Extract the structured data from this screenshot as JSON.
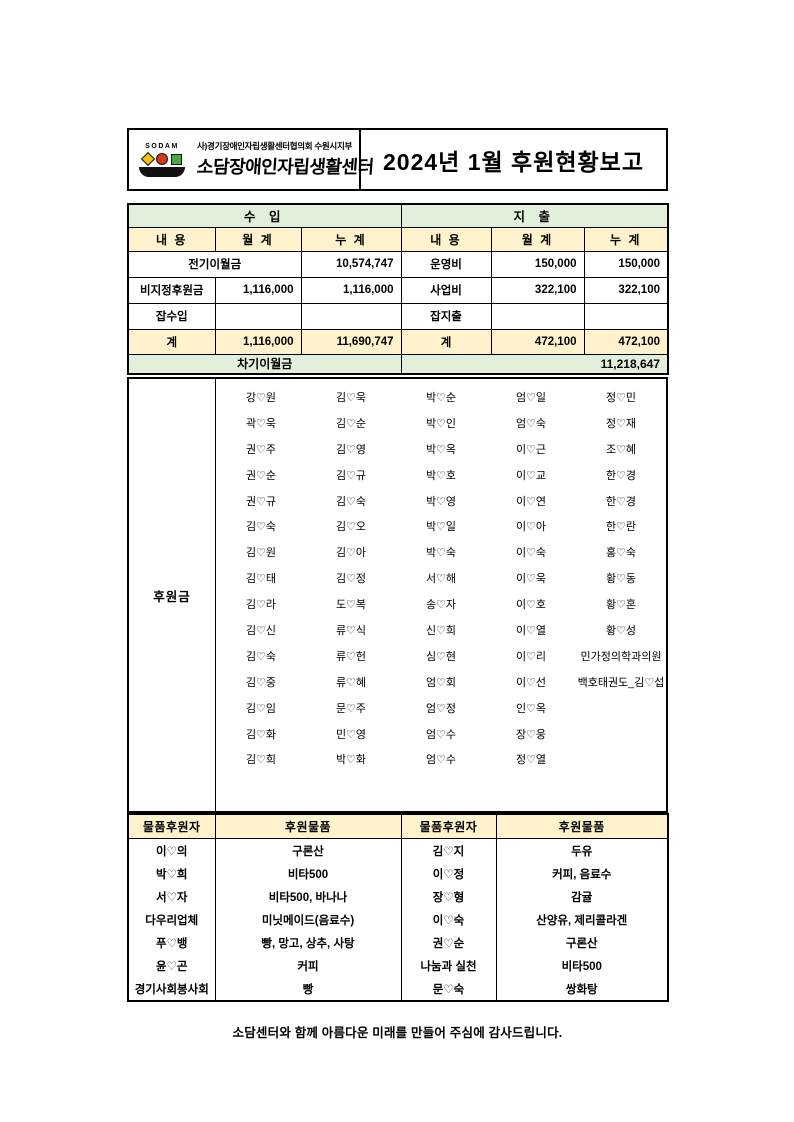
{
  "header": {
    "logo": {
      "sodam": "SODAM",
      "org_line1": "사)경기장애인자립생활센터협의회 수원시지부",
      "org_line2": "소담장애인자립생활센터"
    },
    "title": "2024년 1월 후원현황보고"
  },
  "summary": {
    "section_headers": {
      "income": "수 입",
      "expense": "지 출"
    },
    "col_headers": [
      "내 용",
      "월 계",
      "누 계",
      "내 용",
      "월 계",
      "누 계"
    ],
    "row1": {
      "in_label": "전기이월금",
      "in_cum": "10,574,747",
      "ex_label": "운영비",
      "ex_month": "150,000",
      "ex_cum": "150,000"
    },
    "row2": {
      "in_label": "비지정후원금",
      "in_month": "1,116,000",
      "in_cum": "1,116,000",
      "ex_label": "사업비",
      "ex_month": "322,100",
      "ex_cum": "322,100"
    },
    "row3": {
      "in_label": "잡수입",
      "in_month": "",
      "in_cum": "",
      "ex_label": "잡지출",
      "ex_month": "",
      "ex_cum": ""
    },
    "total": {
      "in_label": "계",
      "in_month": "1,116,000",
      "in_cum": "11,690,747",
      "ex_label": "계",
      "ex_month": "472,100",
      "ex_cum": "472,100"
    },
    "carryover": {
      "label": "차기이월금",
      "value": "11,218,647"
    }
  },
  "donors": {
    "label": "후원금",
    "rows": [
      [
        "강♡원",
        "김♡욱",
        "박♡순",
        "엄♡일",
        "정♡민"
      ],
      [
        "곽♡욱",
        "김♡순",
        "박♡인",
        "엄♡숙",
        "정♡재"
      ],
      [
        "권♡주",
        "김♡영",
        "박♡옥",
        "이♡근",
        "조♡혜"
      ],
      [
        "권♡순",
        "김♡규",
        "박♡호",
        "이♡교",
        "한♡경"
      ],
      [
        "권♡규",
        "김♡숙",
        "박♡영",
        "이♡연",
        "한♡경"
      ],
      [
        "김♡숙",
        "김♡오",
        "박♡일",
        "이♡아",
        "한♡란"
      ],
      [
        "김♡원",
        "김♡아",
        "박♡숙",
        "이♡숙",
        "홍♡숙"
      ],
      [
        "김♡태",
        "김♡정",
        "서♡해",
        "이♡욱",
        "황♡동"
      ],
      [
        "김♡라",
        "도♡복",
        "송♡자",
        "이♡호",
        "황♡혼"
      ],
      [
        "김♡신",
        "류♡식",
        "신♡희",
        "이♡열",
        "황♡성"
      ],
      [
        "김♡숙",
        "류♡헌",
        "심♡현",
        "이♡리",
        "민가정의학과의원"
      ],
      [
        "김♡중",
        "류♡혜",
        "엄♡회",
        "이♡선",
        "백호태권도_김♡섭"
      ],
      [
        "김♡임",
        "문♡주",
        "엄♡정",
        "인♡옥",
        ""
      ],
      [
        "김♡화",
        "민♡영",
        "엄♡수",
        "장♡웅",
        ""
      ],
      [
        "김♡희",
        "박♡화",
        "엄♡수",
        "정♡열",
        ""
      ]
    ]
  },
  "goods": {
    "headers": [
      "물품후원자",
      "후원물품",
      "물품후원자",
      "후원물품"
    ],
    "rows": [
      [
        "이♡의",
        "구론산",
        "김♡지",
        "두유"
      ],
      [
        "박♡희",
        "비타500",
        "이♡정",
        "커피, 음료수"
      ],
      [
        "서♡자",
        "비타500, 바나나",
        "장♡형",
        "감귤"
      ],
      [
        "다우리업체",
        "미닛메이드(음료수)",
        "이♡숙",
        "산양유, 제리콜라겐"
      ],
      [
        "푸♡뱅",
        "빵, 망고, 상추, 사탕",
        "권♡순",
        "구론산"
      ],
      [
        "윤♡곤",
        "커피",
        "나눔과 실천",
        "비타500"
      ],
      [
        "경기사회봉사회",
        "빵",
        "문♡숙",
        "쌍화탕"
      ]
    ]
  },
  "footer": "소담센터와 함께 아름다운 미래를 만들어 주심에 감사드립니다.",
  "colors": {
    "header_green": "#E2EFDA",
    "header_cream": "#FFF2CC",
    "logo_yellow": "#F2C012",
    "logo_red": "#D43A17",
    "logo_green": "#49A942",
    "border_black": "#000000"
  }
}
